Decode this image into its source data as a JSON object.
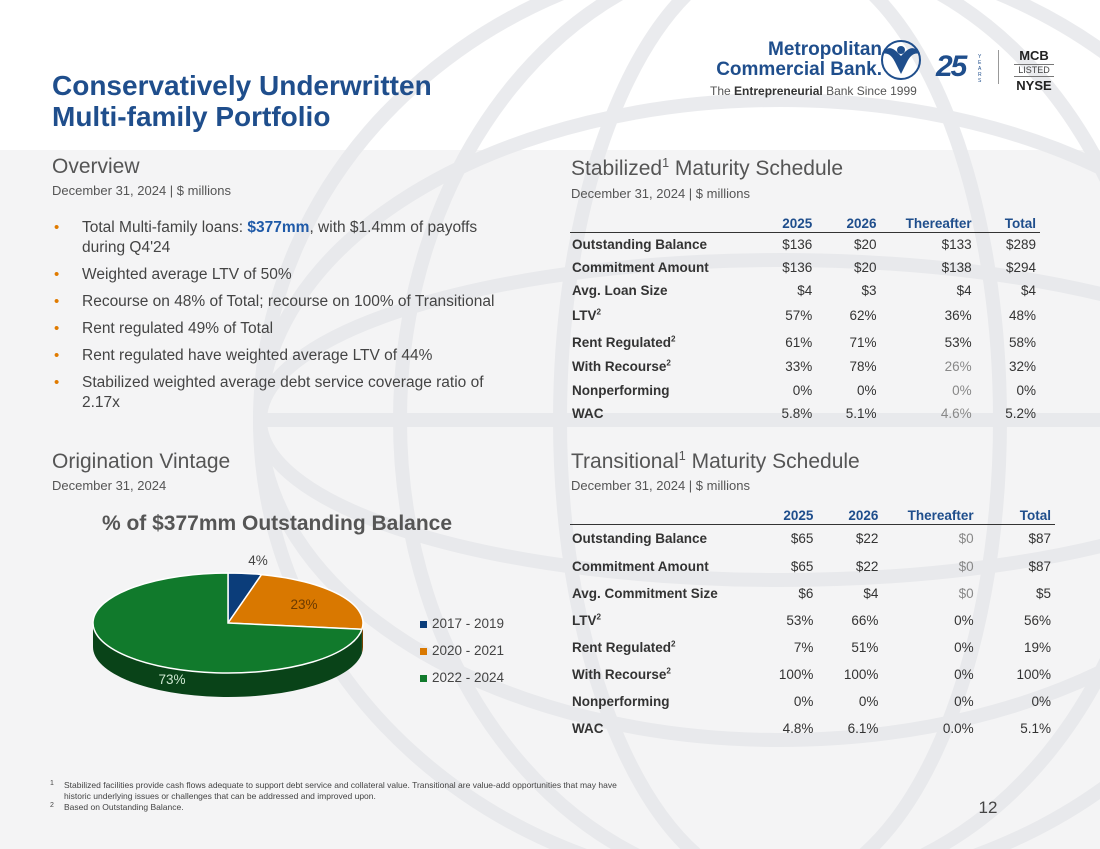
{
  "title": {
    "line1": "Conservatively Underwritten",
    "line2": "Multi-family Portfolio"
  },
  "logo": {
    "name_line1": "Metropolitan",
    "name_line2": "Commercial Bank.",
    "tagline_pre": "The",
    "tagline_bold": "Entrepreneurial",
    "tagline_post": "Bank Since 1999",
    "anniversary": "25",
    "ticker": "MCB",
    "listed": "LISTED",
    "exchange": "NYSE",
    "brand_color": "#1f4e8c"
  },
  "overview": {
    "heading": "Overview",
    "subheading": "December 31, 2024 | $ millions",
    "bullets": [
      {
        "pre": "Total Multi-family loans: ",
        "bold": "$377mm",
        "post": ", with $1.4mm of payoffs during Q4'24"
      },
      {
        "pre": "Weighted average LTV of 50%",
        "bold": "",
        "post": ""
      },
      {
        "pre": "Recourse on 48% of Total; recourse on 100% of Transitional",
        "bold": "",
        "post": ""
      },
      {
        "pre": "Rent regulated 49% of Total",
        "bold": "",
        "post": ""
      },
      {
        "pre": "Rent regulated have weighted average LTV of 44%",
        "bold": "",
        "post": ""
      },
      {
        "pre": "Stabilized weighted average debt service coverage ratio of 2.17x",
        "bold": "",
        "post": ""
      }
    ]
  },
  "vintage": {
    "heading": "Origination Vintage",
    "subheading": "December 31, 2024"
  },
  "chart_data": {
    "type": "pie",
    "title": "% of $377mm Outstanding Balance",
    "categories": [
      "2017 - 2019",
      "2020 - 2021",
      "2022 - 2024"
    ],
    "values": [
      4,
      23,
      73
    ],
    "labels": [
      "4%",
      "23%",
      "73%"
    ],
    "colors": [
      "#0b3d7a",
      "#d97800",
      "#117a2c"
    ],
    "legend_position": "right"
  },
  "stabilized": {
    "heading": "Stabilized",
    "heading_sup": "1",
    "heading_post": " Maturity Schedule",
    "subheading": "December 31, 2024 | $ millions",
    "columns": [
      "2025",
      "2026",
      "Thereafter",
      "Total"
    ],
    "rows": [
      {
        "label": "Outstanding Balance",
        "sup": "",
        "values": [
          "$136",
          "$20",
          "$133",
          "$289"
        ]
      },
      {
        "label": "Commitment Amount",
        "sup": "",
        "values": [
          "$136",
          "$20",
          "$138",
          "$294"
        ]
      },
      {
        "label": "Avg. Loan Size",
        "sup": "",
        "values": [
          "$4",
          "$3",
          "$4",
          "$4"
        ]
      },
      {
        "label": "LTV",
        "sup": "2",
        "values": [
          "57%",
          "62%",
          "36%",
          "48%"
        ]
      },
      {
        "label": "Rent Regulated",
        "sup": "2",
        "values": [
          "61%",
          "71%",
          "53%",
          "58%"
        ]
      },
      {
        "label": "With Recourse",
        "sup": "2",
        "values": [
          "33%",
          "78%",
          "26%",
          "32%"
        ]
      },
      {
        "label": "Nonperforming",
        "sup": "",
        "values": [
          "0%",
          "0%",
          "0%",
          "0%"
        ]
      },
      {
        "label": "WAC",
        "sup": "",
        "values": [
          "5.8%",
          "5.1%",
          "4.6%",
          "5.2%"
        ]
      }
    ]
  },
  "transitional": {
    "heading": "Transitional",
    "heading_sup": "1",
    "heading_post": " Maturity Schedule",
    "subheading": "December 31, 2024 | $ millions",
    "columns": [
      "2025",
      "2026",
      "Thereafter",
      "Total"
    ],
    "rows": [
      {
        "label": "Outstanding Balance",
        "sup": "",
        "values": [
          "$65",
          "$22",
          "$0",
          "$87"
        ]
      },
      {
        "label": "Commitment Amount",
        "sup": "",
        "values": [
          "$65",
          "$22",
          "$0",
          "$87"
        ]
      },
      {
        "label": "Avg. Commitment Size",
        "sup": "",
        "values": [
          "$6",
          "$4",
          "$0",
          "$5"
        ]
      },
      {
        "label": "LTV",
        "sup": "2",
        "values": [
          "53%",
          "66%",
          "0%",
          "56%"
        ]
      },
      {
        "label": "Rent Regulated",
        "sup": "2",
        "values": [
          "7%",
          "51%",
          "0%",
          "19%"
        ]
      },
      {
        "label": "With Recourse",
        "sup": "2",
        "values": [
          "100%",
          "100%",
          "0%",
          "100%"
        ]
      },
      {
        "label": "Nonperforming",
        "sup": "",
        "values": [
          "0%",
          "0%",
          "0%",
          "0%"
        ]
      },
      {
        "label": "WAC",
        "sup": "",
        "values": [
          "4.8%",
          "6.1%",
          "0.0%",
          "5.1%"
        ]
      }
    ]
  },
  "footnotes": [
    {
      "num": "1",
      "text": "Stabilized facilities provide cash flows adequate to support debt service and collateral value. Transitional are value-add opportunities that may have historic underlying issues or challenges that can be addressed and improved upon."
    },
    {
      "num": "2",
      "text": "Based on Outstanding Balance."
    }
  ],
  "page_number": "12"
}
